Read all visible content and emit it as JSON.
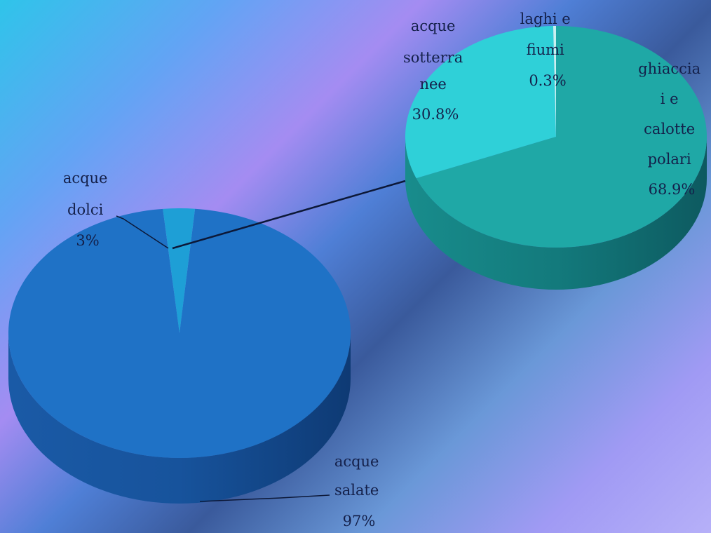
{
  "chart_data": [
    {
      "type": "pie",
      "categories": [
        "acque salate",
        "acque dolci"
      ],
      "values": [
        97,
        3
      ],
      "value_labels": [
        "97%",
        "3%"
      ],
      "colors": [
        "#1f72c6",
        "#1e9fd6"
      ],
      "labels": {
        "salate": [
          "acque",
          "salate",
          "97%"
        ],
        "dolci": [
          "acque",
          "dolci",
          "3%"
        ]
      }
    },
    {
      "type": "pie",
      "categories": [
        "ghiacciai e calotte polari",
        "acque sotterranee",
        "laghi e fiumi"
      ],
      "values": [
        68.9,
        30.8,
        0.3
      ],
      "value_labels": [
        "68.9%",
        "30.8%",
        "0.3%"
      ],
      "colors": [
        "#1fa8a6",
        "#2fd0d8",
        "#c8f0f0"
      ],
      "labels": {
        "ghiacciai": [
          "ghiaccia",
          "i e",
          "calotte",
          "polari",
          "68.9%"
        ],
        "sotterranee": [
          "acque",
          "sotterra",
          "nee",
          "30.8%"
        ],
        "laghi": [
          "laghi e",
          "fiumi",
          "0.3%"
        ]
      }
    }
  ]
}
